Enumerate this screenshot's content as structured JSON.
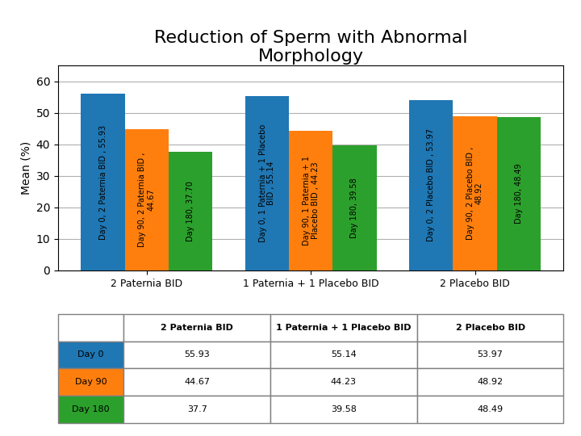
{
  "chart_data": {
    "type": "bar",
    "title": "Reduction of Sperm with Abnormal\nMorphology",
    "y_label": "Mean (%)",
    "categories": [
      "2 Paternia BID",
      "1 Paternia + 1 Placebo BID",
      "2 Placebo BID"
    ],
    "series": [
      {
        "name": "Day 0",
        "values": [
          55.93,
          55.14,
          53.97
        ],
        "value_labels": [
          "Day 0, 2 Paternia BID , 55.93",
          "Day 0, 1 Paternia + 1 Placebo\nBID , 55.14",
          "Day 0, 2 Placebo BID , 53.97"
        ]
      },
      {
        "name": "Day 90",
        "values": [
          44.67,
          44.23,
          48.92
        ],
        "value_labels": [
          "Day 90, 2 Paternia BID ,\n44.67",
          "Day 90, 1 Paternia + 1\nPlacebo BID , 44.23",
          "Day 90, 2 Placebo BID ,\n48.92"
        ]
      },
      {
        "name": "Day 180",
        "values": [
          37.7,
          39.58,
          48.49
        ],
        "value_labels": [
          "Day 180, 37.70",
          "Day 180, 39.58",
          "Day 180, 48.49"
        ]
      }
    ],
    "ylim": [
      0,
      65
    ],
    "yticks": [
      0,
      10,
      20,
      30,
      40,
      50,
      60
    ],
    "grid": true,
    "data_labels": true,
    "table": {
      "rows": [
        {
          "name": "Day 0",
          "cells": [
            "55.93",
            "55.14",
            "53.97"
          ]
        },
        {
          "name": "Day 90",
          "cells": [
            "44.67",
            "44.23",
            "48.92"
          ]
        },
        {
          "name": "Day 180",
          "cells": [
            "37.7",
            "39.58",
            "48.49"
          ]
        }
      ]
    }
  }
}
